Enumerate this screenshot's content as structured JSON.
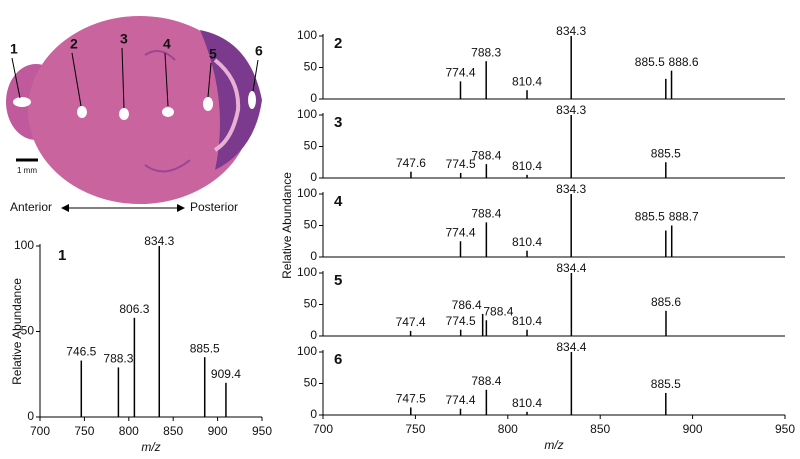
{
  "image": {
    "spot_labels": [
      "1",
      "2",
      "3",
      "4",
      "5",
      "6"
    ],
    "scale_bar": "1 mm",
    "anterior": "Anterior",
    "posterior": "Posterior"
  },
  "chart_data": [
    {
      "type": "spectrum",
      "title": "1",
      "xlabel": "m/z",
      "ylabel": "Relative Abundance",
      "color": "#000000",
      "x": [
        746.5,
        788.3,
        806.3,
        834.3,
        885.5,
        909.4
      ],
      "values": [
        33,
        29,
        58,
        100,
        35,
        20
      ],
      "xlim": [
        700,
        950
      ],
      "ylim": [
        0,
        100
      ],
      "xticks": [
        700,
        750,
        800,
        850,
        900,
        950
      ],
      "yticks": [
        0,
        50,
        100
      ]
    },
    {
      "type": "spectrum",
      "title": "2",
      "color": "#000000",
      "x": [
        774.4,
        788.3,
        810.4,
        834.3,
        885.5,
        888.6
      ],
      "values": [
        28,
        60,
        14,
        100,
        32,
        45
      ],
      "xlim": [
        700,
        950
      ],
      "ylim": [
        0,
        100
      ],
      "yticks": [
        0,
        50,
        100
      ]
    },
    {
      "type": "spectrum",
      "title": "3",
      "color": "#000000",
      "x": [
        747.6,
        774.5,
        788.4,
        810.4,
        834.3,
        885.5
      ],
      "values": [
        10,
        8,
        22,
        5,
        100,
        25
      ],
      "xlim": [
        700,
        950
      ],
      "ylim": [
        0,
        100
      ],
      "yticks": [
        0,
        50,
        100
      ]
    },
    {
      "type": "spectrum",
      "title": "4",
      "ylabel": "Relative Abundance",
      "color": "#000000",
      "x": [
        774.4,
        788.4,
        810.4,
        834.3,
        885.5,
        888.7
      ],
      "values": [
        25,
        55,
        10,
        100,
        42,
        50
      ],
      "xlim": [
        700,
        950
      ],
      "ylim": [
        0,
        100
      ],
      "yticks": [
        0,
        50,
        100
      ]
    },
    {
      "type": "spectrum",
      "title": "5",
      "color": "#000000",
      "x": [
        747.4,
        774.5,
        786.4,
        788.4,
        810.4,
        834.4,
        885.6
      ],
      "values": [
        8,
        10,
        35,
        25,
        10,
        100,
        40
      ],
      "xlim": [
        700,
        950
      ],
      "ylim": [
        0,
        100
      ],
      "yticks": [
        0,
        50,
        100
      ]
    },
    {
      "type": "spectrum",
      "title": "6",
      "xlabel": "m/z",
      "color": "#000000",
      "x": [
        747.5,
        774.4,
        788.4,
        810.4,
        834.4,
        885.5
      ],
      "values": [
        12,
        10,
        40,
        5,
        100,
        35
      ],
      "xlim": [
        700,
        950
      ],
      "ylim": [
        0,
        100
      ],
      "xticks": [
        700,
        750,
        800,
        850,
        900,
        950
      ],
      "yticks": [
        0,
        50,
        100
      ]
    }
  ]
}
